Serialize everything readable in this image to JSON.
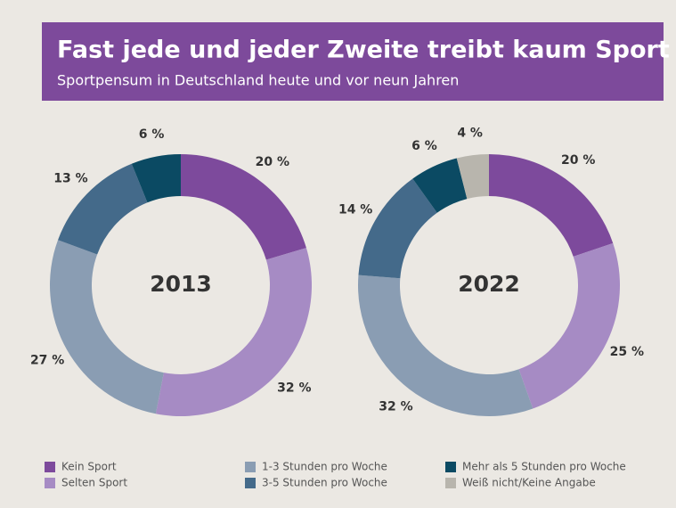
{
  "header": {
    "title": "Fast jede und jeder Zweite treibt kaum Sport",
    "subtitle": "Sportpensum in Deutschland heute und vor neun Jahren"
  },
  "chart_data": [
    {
      "type": "donut",
      "title": "2013",
      "categories": [
        "Kein Sport",
        "Selten Sport",
        "1-3 Stunden pro Woche",
        "3-5 Stunden pro Woche",
        "Mehr als 5 Stunden pro Woche"
      ],
      "values": [
        20,
        32,
        27,
        13,
        6
      ],
      "value_labels": [
        "20 %",
        "32 %",
        "27 %",
        "13 %",
        "6 %"
      ],
      "colors": [
        "#7d4a9c",
        "#a68bc4",
        "#8a9db3",
        "#446a8a",
        "#0b4a63"
      ]
    },
    {
      "type": "donut",
      "title": "2022",
      "categories": [
        "Kein Sport",
        "Selten Sport",
        "1-3 Stunden pro Woche",
        "3-5 Stunden pro Woche",
        "Mehr als 5 Stunden pro Woche",
        "Weiß nicht/Keine Angabe"
      ],
      "values": [
        20,
        25,
        32,
        14,
        6,
        4
      ],
      "value_labels": [
        "20 %",
        "25 %",
        "32 %",
        "14 %",
        "6 %",
        "4 %"
      ],
      "colors": [
        "#7d4a9c",
        "#a68bc4",
        "#8a9db3",
        "#446a8a",
        "#0b4a63",
        "#b8b5ad"
      ]
    }
  ]
}
